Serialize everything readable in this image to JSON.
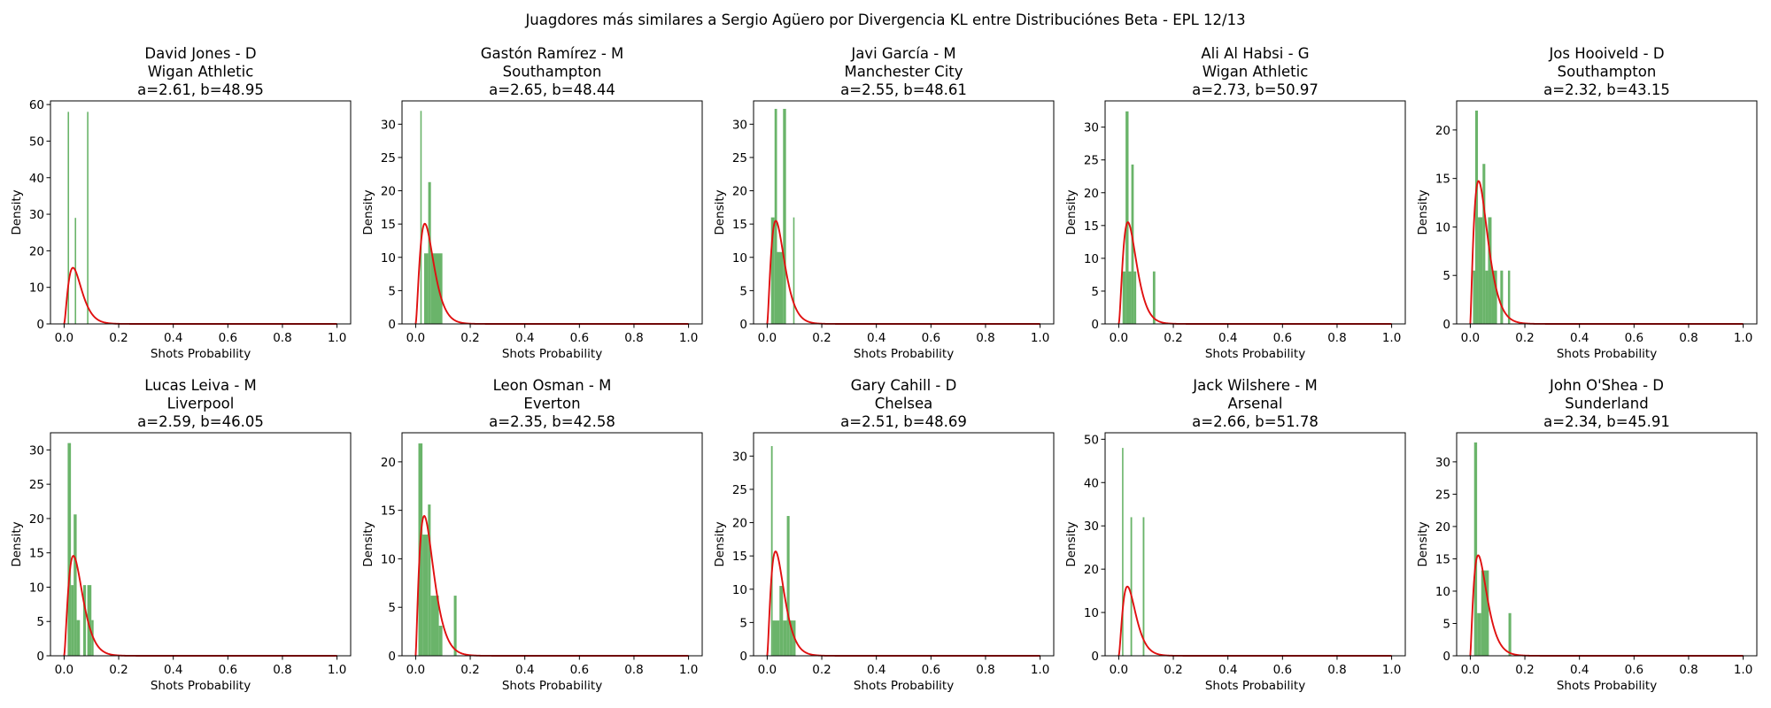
{
  "figure": {
    "title": "Juagdores más similares a Sergio Agüero por Divergencia KL entre Distribuciónes Beta - EPL 12/13"
  },
  "colors": {
    "histogram": "#6ab46a",
    "pdf_line": "#e01010",
    "axes": "#000000"
  },
  "chart_data": [
    {
      "type": "bar",
      "subtype": "histogram-with-beta-pdf",
      "title": [
        "David Jones - D",
        "Wigan Athletic",
        "a=2.61, b=48.95"
      ],
      "xlabel": "Shots Probability",
      "ylabel": "Density",
      "xlim": [
        -0.05,
        1.05
      ],
      "ylim": [
        0,
        61
      ],
      "xticks": [
        0.0,
        0.2,
        0.4,
        0.6,
        0.8,
        1.0
      ],
      "yticks": [
        0,
        10,
        20,
        30,
        40,
        50,
        60
      ],
      "beta": {
        "a": 2.61,
        "b": 48.95
      },
      "bins": [
        [
          0.013,
          0.017,
          58
        ],
        [
          0.039,
          0.043,
          29
        ],
        [
          0.084,
          0.088,
          58
        ]
      ]
    },
    {
      "type": "bar",
      "subtype": "histogram-with-beta-pdf",
      "title": [
        "Gastón Ramírez - M",
        "Southampton",
        "a=2.65, b=48.44"
      ],
      "xlabel": "Shots Probability",
      "ylabel": "Density",
      "xlim": [
        -0.05,
        1.05
      ],
      "ylim": [
        0,
        33.5
      ],
      "xticks": [
        0.0,
        0.2,
        0.4,
        0.6,
        0.8,
        1.0
      ],
      "yticks": [
        0,
        5,
        10,
        15,
        20,
        25,
        30
      ],
      "beta": {
        "a": 2.65,
        "b": 48.44
      },
      "bins": [
        [
          0.017,
          0.022,
          32
        ],
        [
          0.031,
          0.046,
          10.6
        ],
        [
          0.046,
          0.056,
          21.3
        ],
        [
          0.056,
          0.098,
          10.6
        ]
      ]
    },
    {
      "type": "bar",
      "subtype": "histogram-with-beta-pdf",
      "title": [
        "Javi García - M",
        "Manchester City",
        "a=2.55, b=48.61"
      ],
      "xlabel": "Shots Probability",
      "ylabel": "Density",
      "xlim": [
        -0.05,
        1.05
      ],
      "ylim": [
        0,
        33.5
      ],
      "xticks": [
        0.0,
        0.2,
        0.4,
        0.6,
        0.8,
        1.0
      ],
      "yticks": [
        0,
        5,
        10,
        15,
        20,
        25,
        30
      ],
      "beta": {
        "a": 2.55,
        "b": 48.61
      },
      "bins": [
        [
          0.014,
          0.027,
          16
        ],
        [
          0.027,
          0.036,
          32.3
        ],
        [
          0.036,
          0.058,
          10.8
        ],
        [
          0.058,
          0.069,
          32.3
        ],
        [
          0.095,
          0.099,
          16
        ]
      ]
    },
    {
      "type": "bar",
      "subtype": "histogram-with-beta-pdf",
      "title": [
        "Ali Al Habsi - G",
        "Wigan Athletic",
        "a=2.73, b=50.97"
      ],
      "xlabel": "Shots Probability",
      "ylabel": "Density",
      "xlim": [
        -0.05,
        1.05
      ],
      "ylim": [
        0,
        34
      ],
      "xticks": [
        0.0,
        0.2,
        0.4,
        0.6,
        0.8,
        1.0
      ],
      "yticks": [
        0,
        5,
        10,
        15,
        20,
        25,
        30
      ],
      "beta": {
        "a": 2.73,
        "b": 50.97
      },
      "bins": [
        [
          0.014,
          0.025,
          8
        ],
        [
          0.025,
          0.036,
          32.4
        ],
        [
          0.036,
          0.046,
          8
        ],
        [
          0.046,
          0.055,
          24.3
        ],
        [
          0.055,
          0.064,
          8
        ],
        [
          0.125,
          0.134,
          8
        ]
      ]
    },
    {
      "type": "bar",
      "subtype": "histogram-with-beta-pdf",
      "title": [
        "Jos Hooiveld - D",
        "Southampton",
        "a=2.32, b=43.15"
      ],
      "xlabel": "Shots Probability",
      "ylabel": "Density",
      "xlim": [
        -0.05,
        1.05
      ],
      "ylim": [
        0,
        23
      ],
      "xticks": [
        0.0,
        0.2,
        0.4,
        0.6,
        0.8,
        1.0
      ],
      "yticks": [
        0,
        5,
        10,
        15,
        20
      ],
      "beta": {
        "a": 2.32,
        "b": 43.15
      },
      "bins": [
        [
          0.01,
          0.018,
          5.5
        ],
        [
          0.018,
          0.028,
          22
        ],
        [
          0.028,
          0.045,
          11
        ],
        [
          0.045,
          0.055,
          16.5
        ],
        [
          0.055,
          0.065,
          5.5
        ],
        [
          0.065,
          0.078,
          11
        ],
        [
          0.078,
          0.098,
          5.5
        ],
        [
          0.11,
          0.12,
          5.5
        ],
        [
          0.138,
          0.146,
          5.5
        ]
      ]
    },
    {
      "type": "bar",
      "subtype": "histogram-with-beta-pdf",
      "title": [
        "Lucas Leiva - M",
        "Liverpool",
        "a=2.59, b=46.05"
      ],
      "xlabel": "Shots Probability",
      "ylabel": "Density",
      "xlim": [
        -0.05,
        1.05
      ],
      "ylim": [
        0,
        32.5
      ],
      "xticks": [
        0.0,
        0.2,
        0.4,
        0.6,
        0.8,
        1.0
      ],
      "yticks": [
        0,
        5,
        10,
        15,
        20,
        25,
        30
      ],
      "beta": {
        "a": 2.59,
        "b": 46.05
      },
      "bins": [
        [
          0.013,
          0.025,
          31
        ],
        [
          0.025,
          0.035,
          10.3
        ],
        [
          0.035,
          0.046,
          20.6
        ],
        [
          0.046,
          0.058,
          5.2
        ],
        [
          0.07,
          0.08,
          10.3
        ],
        [
          0.085,
          0.1,
          10.3
        ],
        [
          0.1,
          0.108,
          5.2
        ]
      ]
    },
    {
      "type": "bar",
      "subtype": "histogram-with-beta-pdf",
      "title": [
        "Leon Osman - M",
        "Everton",
        "a=2.35, b=42.58"
      ],
      "xlabel": "Shots Probability",
      "ylabel": "Density",
      "xlim": [
        -0.05,
        1.05
      ],
      "ylim": [
        0,
        23
      ],
      "xticks": [
        0.0,
        0.2,
        0.4,
        0.6,
        0.8,
        1.0
      ],
      "yticks": [
        0,
        5,
        10,
        15,
        20
      ],
      "beta": {
        "a": 2.35,
        "b": 42.58
      },
      "bins": [
        [
          0.01,
          0.025,
          21.9
        ],
        [
          0.025,
          0.045,
          12.5
        ],
        [
          0.045,
          0.055,
          15.6
        ],
        [
          0.055,
          0.085,
          6.2
        ],
        [
          0.085,
          0.098,
          3.1
        ],
        [
          0.14,
          0.15,
          6.2
        ]
      ]
    },
    {
      "type": "bar",
      "subtype": "histogram-with-beta-pdf",
      "title": [
        "Gary Cahill - D",
        "Chelsea",
        "a=2.51, b=48.69"
      ],
      "xlabel": "Shots Probability",
      "ylabel": "Density",
      "xlim": [
        -0.05,
        1.05
      ],
      "ylim": [
        0,
        33.5
      ],
      "xticks": [
        0.0,
        0.2,
        0.4,
        0.6,
        0.8,
        1.0
      ],
      "yticks": [
        0,
        5,
        10,
        15,
        20,
        25,
        30
      ],
      "beta": {
        "a": 2.51,
        "b": 48.69
      },
      "bins": [
        [
          0.014,
          0.02,
          31.5
        ],
        [
          0.02,
          0.045,
          5.3
        ],
        [
          0.045,
          0.058,
          10.5
        ],
        [
          0.058,
          0.072,
          5.3
        ],
        [
          0.072,
          0.082,
          21
        ],
        [
          0.082,
          0.094,
          5.3
        ],
        [
          0.094,
          0.104,
          5.3
        ]
      ]
    },
    {
      "type": "bar",
      "subtype": "histogram-with-beta-pdf",
      "title": [
        "Jack Wilshere - M",
        "Arsenal",
        "a=2.66, b=51.78"
      ],
      "xlabel": "Shots Probability",
      "ylabel": "Density",
      "xlim": [
        -0.05,
        1.05
      ],
      "ylim": [
        0,
        51.5
      ],
      "xticks": [
        0.0,
        0.2,
        0.4,
        0.6,
        0.8,
        1.0
      ],
      "yticks": [
        0,
        10,
        20,
        30,
        40,
        50
      ],
      "beta": {
        "a": 2.66,
        "b": 51.78
      },
      "bins": [
        [
          0.012,
          0.017,
          48
        ],
        [
          0.043,
          0.049,
          32
        ],
        [
          0.088,
          0.094,
          32
        ]
      ]
    },
    {
      "type": "bar",
      "subtype": "histogram-with-beta-pdf",
      "title": [
        "John O'Shea - D",
        "Sunderland",
        "a=2.34, b=45.91"
      ],
      "xlabel": "Shots Probability",
      "ylabel": "Density",
      "xlim": [
        -0.05,
        1.05
      ],
      "ylim": [
        0,
        34.5
      ],
      "xticks": [
        0.0,
        0.2,
        0.4,
        0.6,
        0.8,
        1.0
      ],
      "yticks": [
        0,
        5,
        10,
        15,
        20,
        25,
        30
      ],
      "beta": {
        "a": 2.34,
        "b": 45.91
      },
      "bins": [
        [
          0.014,
          0.025,
          33
        ],
        [
          0.025,
          0.04,
          6.6
        ],
        [
          0.04,
          0.068,
          13.2
        ],
        [
          0.14,
          0.15,
          6.6
        ]
      ]
    }
  ]
}
